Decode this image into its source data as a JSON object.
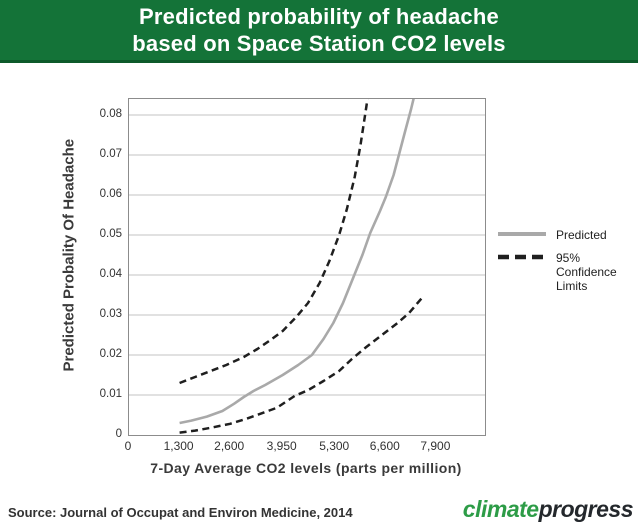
{
  "header": {
    "title_line1": "Predicted probability of headache",
    "title_line2": "based on Space Station CO2 levels",
    "background_color": "#147338",
    "border_color": "#0d5a2a",
    "text_color": "#ffffff"
  },
  "legend": {
    "predicted_label": "Predicted",
    "confidence_label": "95% Confidence Limits"
  },
  "footer": {
    "source": "Source: Journal of Occupat and Environ Medicine, 2014",
    "logo_part1": "climate",
    "logo_part2": "progress",
    "logo_green": "#2d9c47",
    "logo_dark": "#24282c"
  },
  "chart_data": {
    "type": "line",
    "title": "Predicted probability of headache based on Space Station CO2 levels",
    "xlabel": "7-Day Average CO2 levels (parts per million)",
    "ylabel": "Predicted Probality Of Headache",
    "xlim": [
      0,
      9150
    ],
    "ylim": [
      0,
      0.084
    ],
    "x_ticks": [
      0,
      1300,
      2600,
      3950,
      5300,
      6600,
      7900
    ],
    "x_tick_labels": [
      "0",
      "1,300",
      "2,600",
      "3,950",
      "5,300",
      "6,600",
      "7,900"
    ],
    "y_ticks": [
      0,
      0.01,
      0.02,
      0.03,
      0.04,
      0.05,
      0.06,
      0.07,
      0.08
    ],
    "y_tick_labels": [
      "0",
      "0.01",
      "0.02",
      "0.03",
      "0.04",
      "0.05",
      "0.06",
      "0.07",
      "0.08"
    ],
    "grid": "horizontal-only",
    "legend_position": "right-middle",
    "plot_border_color": "#8c8c8c",
    "grid_color": "#c3c3c3",
    "series": [
      {
        "id": "predicted",
        "name": "Predicted",
        "style": "solid",
        "color": "#a9a9a9",
        "width": 2.6,
        "points": [
          [
            1300,
            0.003
          ],
          [
            1600,
            0.0036
          ],
          [
            2000,
            0.0046
          ],
          [
            2400,
            0.006
          ],
          [
            2700,
            0.0078
          ],
          [
            2950,
            0.0095
          ],
          [
            3200,
            0.011
          ],
          [
            3500,
            0.0125
          ],
          [
            3950,
            0.015
          ],
          [
            4350,
            0.0175
          ],
          [
            4700,
            0.02
          ],
          [
            5000,
            0.024
          ],
          [
            5250,
            0.028
          ],
          [
            5500,
            0.033
          ],
          [
            5750,
            0.039
          ],
          [
            6000,
            0.045
          ],
          [
            6200,
            0.0505
          ],
          [
            6450,
            0.056
          ],
          [
            6600,
            0.0595
          ],
          [
            6800,
            0.065
          ],
          [
            6950,
            0.0705
          ],
          [
            7100,
            0.076
          ],
          [
            7250,
            0.0815
          ],
          [
            7400,
            0.0875
          ]
        ]
      },
      {
        "id": "upper-confidence-limit",
        "name": "95% Confidence Limit (upper)",
        "style": "dashed",
        "color": "#1f1f1f",
        "width": 2.5,
        "points": [
          [
            1300,
            0.013
          ],
          [
            1700,
            0.0145
          ],
          [
            2100,
            0.016
          ],
          [
            2500,
            0.0175
          ],
          [
            2950,
            0.0195
          ],
          [
            3300,
            0.0215
          ],
          [
            3600,
            0.0235
          ],
          [
            3950,
            0.026
          ],
          [
            4300,
            0.0295
          ],
          [
            4600,
            0.033
          ],
          [
            4900,
            0.038
          ],
          [
            5150,
            0.0435
          ],
          [
            5400,
            0.05
          ],
          [
            5600,
            0.0565
          ],
          [
            5800,
            0.0645
          ],
          [
            5950,
            0.0725
          ],
          [
            6100,
            0.082
          ],
          [
            6180,
            0.0875
          ]
        ]
      },
      {
        "id": "lower-confidence-limit",
        "name": "95% Confidence Limit (lower)",
        "style": "dashed",
        "color": "#1f1f1f",
        "width": 2.5,
        "points": [
          [
            1300,
            0.0006
          ],
          [
            1700,
            0.0011
          ],
          [
            2100,
            0.0018
          ],
          [
            2600,
            0.0028
          ],
          [
            3000,
            0.004
          ],
          [
            3400,
            0.0054
          ],
          [
            3800,
            0.0068
          ],
          [
            4265,
            0.0098
          ],
          [
            4600,
            0.0112
          ],
          [
            5000,
            0.0135
          ],
          [
            5400,
            0.016
          ],
          [
            5730,
            0.019
          ],
          [
            6100,
            0.022
          ],
          [
            6500,
            0.025
          ],
          [
            6900,
            0.028
          ],
          [
            7200,
            0.0305
          ],
          [
            7550,
            0.0345
          ]
        ]
      }
    ]
  }
}
